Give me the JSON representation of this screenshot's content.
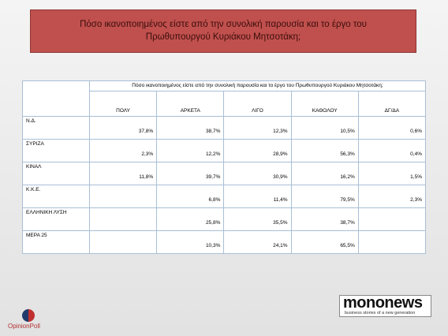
{
  "header": {
    "title": "Πόσο ικανοποιημένος είστε από την συνολική παρουσία και το έργο του Πρωθυπουργού Κυριάκου Μητσοτάκη;"
  },
  "table": {
    "title": "Πόσο ικανοποιημένος είστε από την συνολική παρουσία και το έργο του Πρωθυπουργού  Κυριάκου Μητσοτάκη;",
    "columns": [
      "ΠΟΛΥ",
      "ΑΡΚΕΤΑ",
      "ΛΙΓΟ",
      "ΚΑΘΟΛΟΥ",
      "ΔΓ/ΔΑ"
    ],
    "rows": [
      {
        "label": "Ν.Δ.",
        "values": [
          "37,8%",
          "38,7%",
          "12,3%",
          "10,5%",
          "0,6%"
        ]
      },
      {
        "label": "ΣΥΡΙΖΑ",
        "values": [
          "2,3%",
          "12,2%",
          "28,9%",
          "56,3%",
          "0,4%"
        ]
      },
      {
        "label": "ΚΙΝΑΛ",
        "values": [
          "11,8%",
          "39,7%",
          "30,9%",
          "16,2%",
          "1,5%"
        ]
      },
      {
        "label": "Κ.Κ.Ε.",
        "values": [
          null,
          "6,8%",
          "11,4%",
          "79,5%",
          "2,3%"
        ]
      },
      {
        "label": "ΕΛΛΗΝΙΚΗ ΛΥΣΗ",
        "values": [
          null,
          "25,8%",
          "35,5%",
          "38,7%",
          null
        ]
      },
      {
        "label": "ΜΕΡΑ 25",
        "values": [
          null,
          "10,3%",
          "24,1%",
          "65,5%",
          null
        ]
      }
    ]
  },
  "logos": {
    "left": "OpinionPoll",
    "right": "mononews",
    "right_tagline": "business stories of a new generation"
  }
}
